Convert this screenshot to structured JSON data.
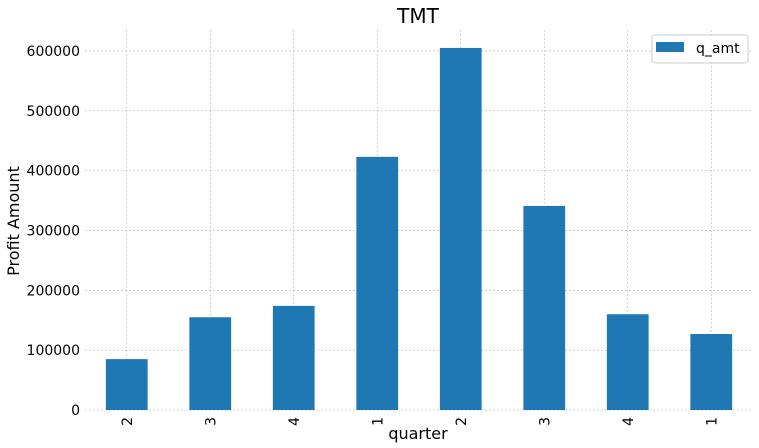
{
  "chart_data": {
    "type": "bar",
    "title": "TMT",
    "xlabel": "quarter",
    "ylabel": "Profit Amount",
    "categories": [
      "2",
      "3",
      "4",
      "1",
      "2",
      "3",
      "4",
      "1"
    ],
    "series": [
      {
        "name": "q_amt",
        "values": [
          85000,
          155000,
          174000,
          423000,
          605000,
          341000,
          160000,
          127000
        ],
        "color": "#1f77b4"
      }
    ],
    "yticks": [
      "0",
      "100000",
      "200000",
      "300000",
      "400000",
      "500000",
      "600000"
    ],
    "ylim": [
      0,
      635000
    ],
    "grid": true,
    "legend": "top-right"
  }
}
